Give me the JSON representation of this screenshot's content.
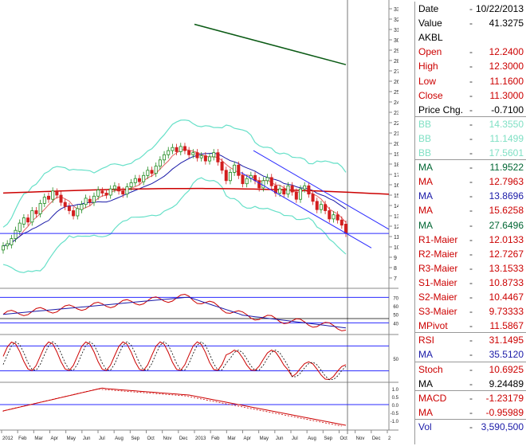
{
  "chart_data": {
    "type": "candlestick",
    "symbol": "AKBL",
    "main_axis": {
      "ticks": [
        7,
        8,
        9,
        10,
        11,
        12,
        13,
        14,
        15,
        16,
        17,
        18,
        19,
        20,
        21,
        22,
        23,
        24,
        25,
        26,
        27,
        28,
        29,
        30,
        31,
        32,
        33
      ]
    },
    "macd_axis": {
      "ticks": [
        "1.0",
        "0.5",
        "0.0",
        "-0.5",
        "-1.0"
      ]
    },
    "rsi_axis": {
      "ticks": [
        "70",
        "60",
        "50",
        "40"
      ]
    },
    "stoch_axis": {
      "ticks": [
        "50"
      ]
    },
    "x_axis": {
      "labels": [
        "2012",
        "Feb",
        "Mar",
        "Apr",
        "May",
        "Jun",
        "Jul",
        "Aug",
        "Sep",
        "Oct",
        "Nov",
        "Dec",
        "2013",
        "Feb",
        "Mar",
        "Apr",
        "May",
        "Jun",
        "Jul",
        "Aug",
        "Sep",
        "Oct",
        "Nov",
        "Dec",
        "2"
      ]
    },
    "candles": [
      {
        "o": 9.7,
        "c": 10.1
      },
      {
        "o": 10.1,
        "c": 10.3
      },
      {
        "o": 10.2,
        "c": 10.8
      },
      {
        "o": 10.8,
        "c": 11.6
      },
      {
        "o": 11.5,
        "c": 12.3
      },
      {
        "o": 12.2,
        "c": 12.8
      },
      {
        "o": 12.8,
        "c": 12.4
      },
      {
        "o": 12.4,
        "c": 13.5
      },
      {
        "o": 13.5,
        "c": 13.2
      },
      {
        "o": 13.2,
        "c": 14.2
      },
      {
        "o": 14.2,
        "c": 14.8
      },
      {
        "o": 14.9,
        "c": 14.6
      },
      {
        "o": 14.6,
        "c": 15.4
      },
      {
        "o": 15.3,
        "c": 15.0
      },
      {
        "o": 15.0,
        "c": 14.3
      },
      {
        "o": 14.3,
        "c": 13.9
      },
      {
        "o": 13.9,
        "c": 13.5
      },
      {
        "o": 13.5,
        "c": 13.0
      },
      {
        "o": 13.0,
        "c": 13.7
      },
      {
        "o": 13.6,
        "c": 14.1
      },
      {
        "o": 14.1,
        "c": 14.7
      },
      {
        "o": 14.6,
        "c": 14.3
      },
      {
        "o": 14.3,
        "c": 14.9
      },
      {
        "o": 14.9,
        "c": 15.5
      },
      {
        "o": 15.4,
        "c": 15.2
      },
      {
        "o": 15.2,
        "c": 15.0
      },
      {
        "o": 15.0,
        "c": 15.6
      },
      {
        "o": 15.6,
        "c": 15.9
      },
      {
        "o": 15.8,
        "c": 15.4
      },
      {
        "o": 15.4,
        "c": 15.1
      },
      {
        "o": 15.1,
        "c": 15.8
      },
      {
        "o": 15.8,
        "c": 16.2
      },
      {
        "o": 16.2,
        "c": 16.6
      },
      {
        "o": 16.6,
        "c": 16.3
      },
      {
        "o": 16.3,
        "c": 16.9
      },
      {
        "o": 16.9,
        "c": 17.4
      },
      {
        "o": 17.4,
        "c": 17.1
      },
      {
        "o": 17.1,
        "c": 17.8
      },
      {
        "o": 17.8,
        "c": 18.4
      },
      {
        "o": 18.4,
        "c": 18.9
      },
      {
        "o": 18.9,
        "c": 19.3
      },
      {
        "o": 19.3,
        "c": 19.6
      },
      {
        "o": 19.6,
        "c": 19.2
      },
      {
        "o": 19.2,
        "c": 19.7
      },
      {
        "o": 19.7,
        "c": 19.3
      },
      {
        "o": 19.3,
        "c": 18.9
      },
      {
        "o": 18.9,
        "c": 19.1
      },
      {
        "o": 19.1,
        "c": 18.6
      },
      {
        "o": 18.6,
        "c": 18.8
      },
      {
        "o": 18.8,
        "c": 18.3
      },
      {
        "o": 18.3,
        "c": 18.7
      },
      {
        "o": 18.7,
        "c": 19.1
      },
      {
        "o": 19.1,
        "c": 18.2
      },
      {
        "o": 18.2,
        "c": 17.4
      },
      {
        "o": 17.4,
        "c": 16.4
      },
      {
        "o": 16.4,
        "c": 17.2
      },
      {
        "o": 17.2,
        "c": 17.9
      },
      {
        "o": 17.9,
        "c": 16.9
      },
      {
        "o": 16.9,
        "c": 16.1
      },
      {
        "o": 16.1,
        "c": 16.6
      },
      {
        "o": 16.6,
        "c": 16.9
      },
      {
        "o": 16.9,
        "c": 16.4
      },
      {
        "o": 16.4,
        "c": 15.7
      },
      {
        "o": 15.7,
        "c": 16.4
      },
      {
        "o": 16.4,
        "c": 16.7
      },
      {
        "o": 16.7,
        "c": 15.9
      },
      {
        "o": 15.9,
        "c": 15.2
      },
      {
        "o": 15.2,
        "c": 15.6
      },
      {
        "o": 15.6,
        "c": 15.1
      },
      {
        "o": 15.1,
        "c": 15.9
      },
      {
        "o": 15.9,
        "c": 15.3
      },
      {
        "o": 15.3,
        "c": 14.6
      },
      {
        "o": 14.6,
        "c": 15.6
      },
      {
        "o": 15.6,
        "c": 15.9
      },
      {
        "o": 15.9,
        "c": 15.1
      },
      {
        "o": 15.1,
        "c": 14.4
      },
      {
        "o": 14.4,
        "c": 13.6
      },
      {
        "o": 13.6,
        "c": 14.1
      },
      {
        "o": 14.1,
        "c": 13.5
      },
      {
        "o": 13.5,
        "c": 12.7
      },
      {
        "o": 12.7,
        "c": 13.1
      },
      {
        "o": 13.1,
        "c": 12.6
      },
      {
        "o": 12.6,
        "c": 12.1
      },
      {
        "o": 12.2,
        "c": 11.3
      }
    ],
    "resistance_level": 11.3,
    "ma200_endpoints": [
      31.5,
      27.6
    ]
  },
  "info_panel": {
    "rows": [
      {
        "label": "Date",
        "value": "10/22/2013",
        "color": "#000000"
      },
      {
        "label": "Value",
        "value": "41.3275",
        "color": "#000000"
      },
      {
        "label": "AKBL",
        "value": "",
        "color": "#000000"
      },
      {
        "label": "Open",
        "value": "12.2400",
        "color": "#cc0000"
      },
      {
        "label": "High",
        "value": "12.3000",
        "color": "#cc0000"
      },
      {
        "label": "Low",
        "value": "11.1600",
        "color": "#cc0000"
      },
      {
        "label": "Close",
        "value": "11.3000",
        "color": "#cc0000"
      },
      {
        "label": "Price Chg.",
        "value": "-0.7100",
        "color": "#000000"
      },
      {
        "label": "BB",
        "value": "14.3550",
        "color": "#7fe0c4"
      },
      {
        "label": "BB",
        "value": "11.1499",
        "color": "#7fe0c4"
      },
      {
        "label": "BB",
        "value": "17.5601",
        "color": "#7fe0c4"
      },
      {
        "label": "MA",
        "value": "11.9522",
        "color": "#006633"
      },
      {
        "label": "MA",
        "value": "12.7963",
        "color": "#cc0000"
      },
      {
        "label": "MA",
        "value": "13.8696",
        "color": "#1a1aa8"
      },
      {
        "label": "MA",
        "value": "15.6258",
        "color": "#cc0000"
      },
      {
        "label": "MA",
        "value": "27.6496",
        "color": "#006633"
      },
      {
        "label": "R1-Maier",
        "value": "12.0133",
        "color": "#cc0000"
      },
      {
        "label": "R2-Maier",
        "value": "12.7267",
        "color": "#cc0000"
      },
      {
        "label": "R3-Maier",
        "value": "13.1533",
        "color": "#cc0000"
      },
      {
        "label": "S1-Maier",
        "value": "10.8733",
        "color": "#cc0000"
      },
      {
        "label": "S2-Maier",
        "value": "10.4467",
        "color": "#cc0000"
      },
      {
        "label": "S3-Maier",
        "value": "9.73333",
        "color": "#cc0000"
      },
      {
        "label": "MPivot",
        "value": "11.5867",
        "color": "#cc0000"
      },
      {
        "label": "RSI",
        "value": "31.1495",
        "color": "#cc0000"
      },
      {
        "label": "MA",
        "value": "35.5120",
        "color": "#1a1aa8"
      },
      {
        "label": "Stoch",
        "value": "10.6925",
        "color": "#cc0000"
      },
      {
        "label": "MA",
        "value": "9.24489",
        "color": "#000000"
      },
      {
        "label": "MACD",
        "value": "-1.23179",
        "color": "#cc0000"
      },
      {
        "label": "MA",
        "value": "-0.95989",
        "color": "#cc0000"
      },
      {
        "label": "Vol",
        "value": "3,590,500",
        "color": "#1a1aa8"
      }
    ]
  },
  "colors": {
    "up": "#1f8a1f",
    "down": "#d21f1f",
    "bb": "#66e0c8",
    "ma_blue": "#1a1aa8",
    "ma_red": "#cc0000",
    "ma_green": "#0a5a14"
  }
}
